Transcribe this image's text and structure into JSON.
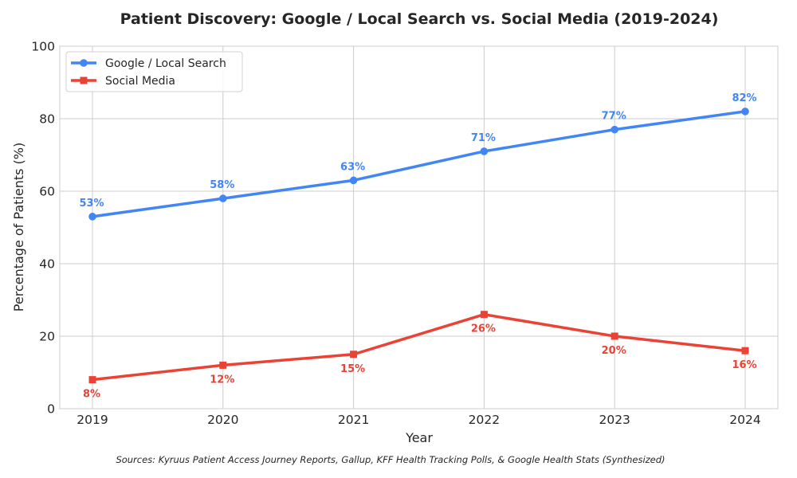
{
  "chart_data": {
    "type": "line",
    "title": "Patient Discovery: Google / Local Search vs. Social Media (2019-2024)",
    "xlabel": "Year",
    "ylabel": "Percentage of Patients (%)",
    "categories": [
      "2019",
      "2020",
      "2021",
      "2022",
      "2023",
      "2024"
    ],
    "ylim": [
      0,
      100
    ],
    "yticks": [
      "0",
      "20",
      "40",
      "60",
      "80",
      "100"
    ],
    "grid": true,
    "legend_position": "top-left",
    "series": [
      {
        "name": "Google / Local Search",
        "color": "#4285F4",
        "marker": "circle",
        "values": [
          53,
          58,
          63,
          71,
          77,
          82
        ],
        "labels": [
          "53%",
          "58%",
          "63%",
          "71%",
          "77%",
          "82%"
        ],
        "label_position": "above"
      },
      {
        "name": "Social Media",
        "color": "#EA4335",
        "marker": "square",
        "values": [
          8,
          12,
          15,
          26,
          20,
          16
        ],
        "labels": [
          "8%",
          "12%",
          "15%",
          "26%",
          "20%",
          "16%"
        ],
        "label_position": "below"
      }
    ],
    "source_note": "Sources: Kyruus Patient Access Journey Reports, Gallup, KFF Health Tracking Polls, & Google Health Stats (Synthesized)"
  }
}
